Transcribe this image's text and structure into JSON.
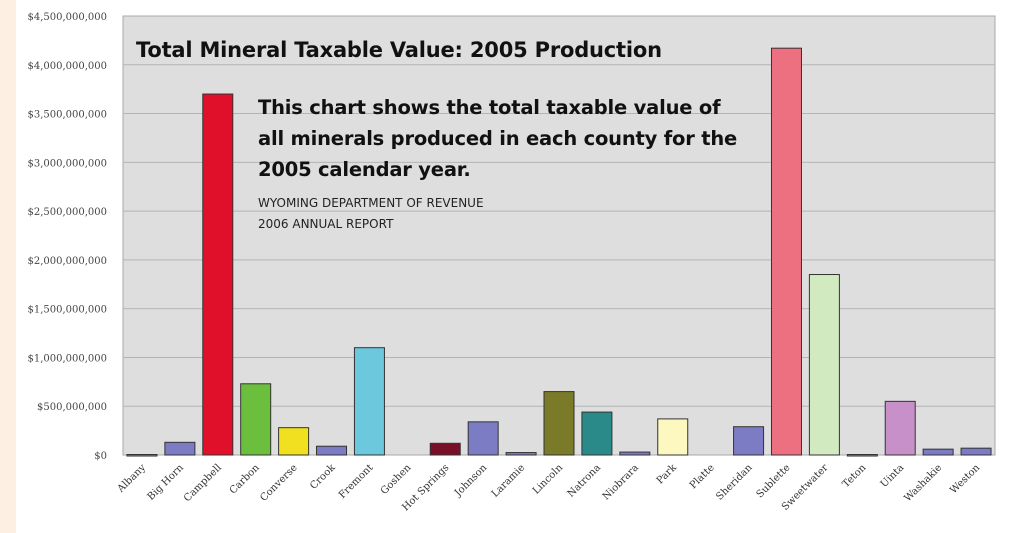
{
  "chart_data": {
    "type": "bar",
    "title": "Total Mineral Taxable Value: 2005 Production",
    "description": "This chart shows the total taxable value of all minerals produced in each county for the 2005 calendar year.",
    "source_line1": "WYOMING DEPARTMENT OF REVENUE",
    "source_line2": "2006 ANNUAL REPORT",
    "xlabel": "",
    "ylabel": "",
    "ylim": [
      0,
      4500000000
    ],
    "y_ticks": [
      0,
      500000000,
      1000000000,
      1500000000,
      2000000000,
      2500000000,
      3000000000,
      3500000000,
      4000000000,
      4500000000
    ],
    "y_tick_labels": [
      "$0",
      "$500,000,000",
      "$1,000,000,000",
      "$1,500,000,000",
      "$2,000,000,000",
      "$2,500,000,000",
      "$3,000,000,000",
      "$3,500,000,000",
      "$4,000,000,000",
      "$4,500,000,000"
    ],
    "grid": true,
    "legend": "none",
    "categories": [
      "Albany",
      "Big Horn",
      "Campbell",
      "Carbon",
      "Converse",
      "Crook",
      "Fremont",
      "Goshen",
      "Hot Springs",
      "Johnson",
      "Laramie",
      "Lincoln",
      "Natrona",
      "Niobrara",
      "Park",
      "Platte",
      "Sheridan",
      "Sublette",
      "Sweetwater",
      "Teton",
      "Uinta",
      "Washakie",
      "Weston"
    ],
    "values": [
      5000000,
      130000000,
      3700000000,
      730000000,
      280000000,
      90000000,
      1100000000,
      0,
      120000000,
      340000000,
      25000000,
      650000000,
      440000000,
      30000000,
      370000000,
      0,
      290000000,
      4170000000,
      1850000000,
      5000000,
      550000000,
      60000000,
      70000000
    ],
    "colors": [
      "#8888c8",
      "#7c7cc4",
      "#e0102a",
      "#6cbf3c",
      "#f0e020",
      "#7c7cc4",
      "#6cc8dc",
      "#8888c8",
      "#7a1028",
      "#7c7cc4",
      "#7c7cc4",
      "#7a7a28",
      "#2a8a8a",
      "#7c7cc4",
      "#fcf8c0",
      "#8888c8",
      "#7c7cc4",
      "#ec7080",
      "#d2eac0",
      "#8888c8",
      "#c890c8",
      "#7c7cc4",
      "#7c7cc4"
    ]
  }
}
